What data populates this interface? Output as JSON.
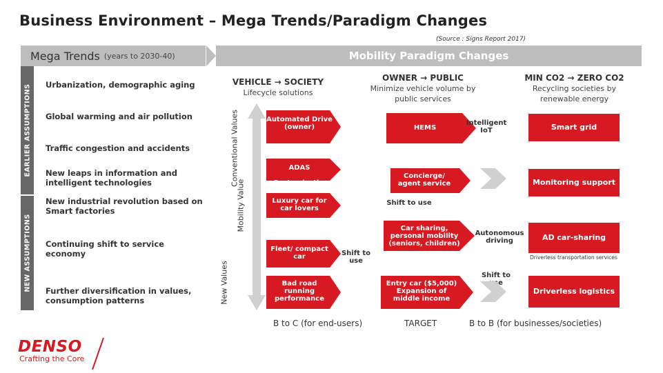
{
  "title": "Business Environment – Mega Trends/Paradigm Changes",
  "source": "(Source : Signs Report 2017)",
  "mega_trends": {
    "heading": "Mega Trends",
    "subheading": "(years to 2030-40)",
    "earlier_label": "EARLIER ASSUMPTIONS",
    "new_label": "NEW ASSUMPTIONS",
    "items": [
      "Urbanization, demographic aging",
      "Global warming and air pollution",
      "Traffic congestion and accidents",
      "New leaps in information and intelligent technologies",
      "New industrial revolution based on Smart factories",
      "Continuing shift to service economy",
      "Further diversification in values, consumption patterns"
    ]
  },
  "paradigm": {
    "heading": "Mobility Paradigm Changes",
    "axis_conventional": "Conventional Values",
    "axis_new": "New Values",
    "axis_mobility": "Mobility Value",
    "col1": {
      "title": "VEHICLE → SOCIETY",
      "sub": "Lifecycle solutions"
    },
    "col2": {
      "title": "OWNER → PUBLIC",
      "sub": "Minimize vehicle volume by public services"
    },
    "col3": {
      "title": "MIN CO2 → ZERO CO2",
      "sub": "Recycling societies by renewable energy"
    },
    "boxes": {
      "automated_drive": "Automated Drive (owner)",
      "adas": "ADAS",
      "customization": "Customization",
      "luxury_car": "Luxury car for car lovers",
      "fleet": "Fleet/ compact car",
      "bad_road": "Bad road running performance",
      "hems": "HEMS",
      "intelligent_iot": "Intelligent IoT",
      "concierge": "Concierge/ agent service",
      "shift_to_use_1": "Shift to use",
      "car_sharing": "Car sharing, personal mobility (seniors, children)",
      "shift_to_use_2": "Shift to use",
      "entry_car": "Entry car ($5,000) Expansion of middle income",
      "smart_grid": "Smart grid",
      "monitoring": "Monitoring support",
      "autonomous": "Autonomous driving",
      "ad_car_sharing": "AD car-sharing",
      "driverless_services": "Driverless transportation services",
      "shift_to_use_3": "Shift to use",
      "driverless_logistics": "Driverless logistics"
    },
    "footer": {
      "b2c": "B to C (for end-users)",
      "target": "TARGET",
      "b2b": "B to B (for businesses/societies)"
    }
  },
  "logo": {
    "brand": "DENSO",
    "tagline": "Crafting the Core"
  },
  "colors": {
    "red": "#d71a21",
    "orange": "#e8604c",
    "gray_bar": "#bdbdbd",
    "dark_side": "#676767"
  }
}
